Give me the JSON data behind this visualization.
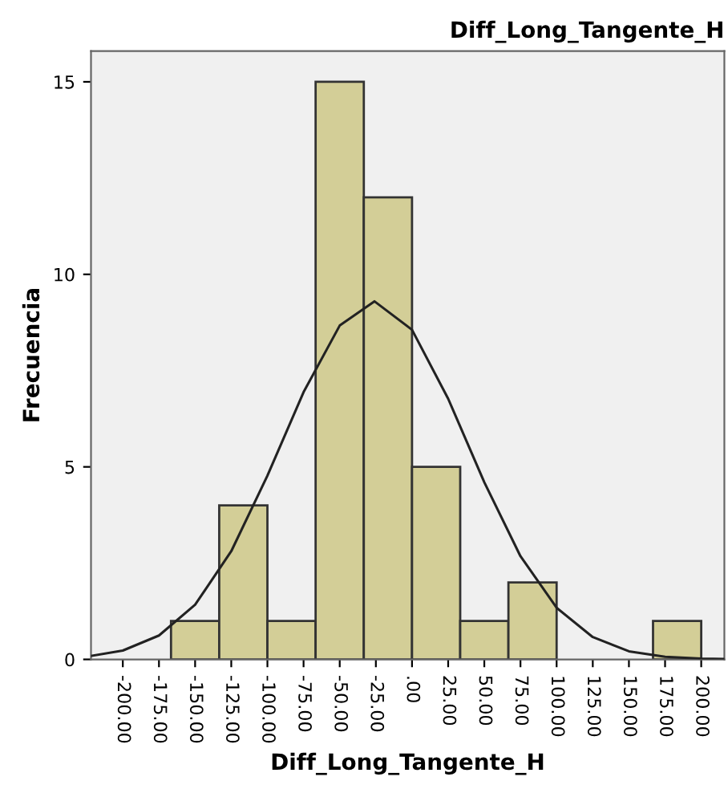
{
  "chart_data": {
    "type": "histogram",
    "title": "Diff_Long_Tangente_H",
    "xlabel": "Diff_Long_Tangente_H",
    "ylabel": "Frecuencia",
    "xlim": [
      -222,
      216
    ],
    "ylim": [
      0,
      15.8
    ],
    "xticks": [
      {
        "value": -200,
        "label": "-200.00"
      },
      {
        "value": -175,
        "label": "-175.00"
      },
      {
        "value": -150,
        "label": "-150.00"
      },
      {
        "value": -125,
        "label": "-125.00"
      },
      {
        "value": -100,
        "label": "-100.00"
      },
      {
        "value": -75,
        "label": "-75.00"
      },
      {
        "value": -50,
        "label": "-50.00"
      },
      {
        "value": -25,
        "label": "-25.00"
      },
      {
        "value": 0,
        "label": ".00"
      },
      {
        "value": 25,
        "label": "25.00"
      },
      {
        "value": 50,
        "label": "50.00"
      },
      {
        "value": 75,
        "label": "75.00"
      },
      {
        "value": 100,
        "label": "100.00"
      },
      {
        "value": 125,
        "label": "125.00"
      },
      {
        "value": 150,
        "label": "150.00"
      },
      {
        "value": 175,
        "label": "175.00"
      },
      {
        "value": 200,
        "label": "200.00"
      }
    ],
    "yticks": [
      0,
      5,
      10,
      15
    ],
    "grid": false,
    "series": [
      {
        "color": "#d3ce97",
        "bins": [
          -166.67,
          -133.33,
          -100,
          -66.67,
          -33.33,
          0,
          33.33,
          66.67,
          100,
          133.33,
          166.67,
          200
        ],
        "values": [
          1,
          4,
          1,
          15,
          12,
          5,
          1,
          2,
          0,
          0,
          1
        ]
      },
      {
        "type": "line",
        "color": "#222222",
        "x": [
          -222,
          -200,
          -175,
          -150,
          -125,
          -100,
          -75,
          -50,
          -26,
          0,
          25,
          50,
          75,
          100,
          125,
          150,
          175,
          200,
          216
        ],
        "values": [
          0.09,
          0.23,
          0.62,
          1.42,
          2.81,
          4.77,
          6.94,
          8.67,
          9.3,
          8.56,
          6.77,
          4.6,
          2.68,
          1.34,
          0.58,
          0.21,
          0.07,
          0.02,
          0.01
        ]
      }
    ]
  }
}
